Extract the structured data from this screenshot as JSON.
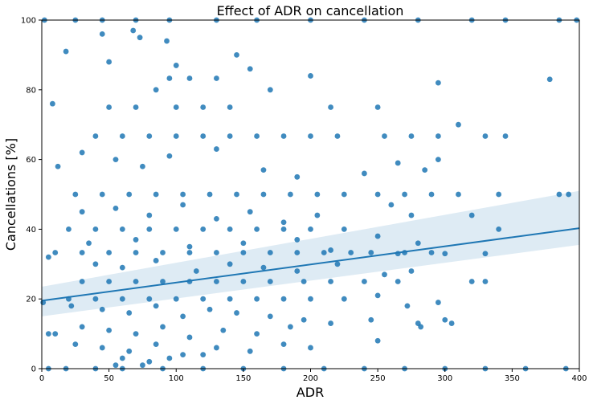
{
  "chart_data": {
    "type": "scatter",
    "title": "Effect of ADR on cancellation",
    "xlabel": "ADR",
    "ylabel": "Cancellations [%]",
    "xlim": [
      0,
      400
    ],
    "ylim": [
      0,
      100
    ],
    "xticks": [
      "0",
      "50",
      "100",
      "150",
      "200",
      "250",
      "300",
      "350",
      "400"
    ],
    "yticks": [
      "0",
      "20",
      "40",
      "60",
      "80",
      "100"
    ],
    "grid": false,
    "legend": "none",
    "point_color": "#1f77b4",
    "regression": {
      "x": [
        0,
        400
      ],
      "y": [
        19.5,
        40.3
      ],
      "ci_low": [
        15.0,
        35.5
      ],
      "ci_high": [
        23.5,
        51.0
      ],
      "color": "#1f77b4"
    },
    "series": [
      {
        "points": [
          [
            5,
            0
          ],
          [
            18,
            0
          ],
          [
            40,
            0
          ],
          [
            60,
            0
          ],
          [
            90,
            0
          ],
          [
            120,
            0
          ],
          [
            150,
            0
          ],
          [
            180,
            0
          ],
          [
            210,
            0
          ],
          [
            240,
            0
          ],
          [
            270,
            0
          ],
          [
            300,
            0
          ],
          [
            330,
            0
          ],
          [
            360,
            0
          ],
          [
            390,
            0
          ],
          [
            2,
            100
          ],
          [
            25,
            100
          ],
          [
            45,
            100
          ],
          [
            70,
            100
          ],
          [
            95,
            100
          ],
          [
            130,
            100
          ],
          [
            160,
            100
          ],
          [
            200,
            100
          ],
          [
            240,
            100
          ],
          [
            280,
            100
          ],
          [
            320,
            100
          ],
          [
            345,
            100
          ],
          [
            385,
            100
          ],
          [
            398,
            100
          ],
          [
            45,
            96
          ],
          [
            68,
            97
          ],
          [
            73,
            95
          ],
          [
            93,
            94
          ],
          [
            18,
            91
          ],
          [
            8,
            76
          ],
          [
            145,
            90
          ],
          [
            50,
            88
          ],
          [
            100,
            87
          ],
          [
            155,
            86
          ],
          [
            200,
            84
          ],
          [
            295,
            82
          ],
          [
            378,
            83
          ],
          [
            310,
            70
          ],
          [
            95,
            83.3
          ],
          [
            110,
            83.3
          ],
          [
            130,
            83.3
          ],
          [
            170,
            80
          ],
          [
            120,
            75
          ],
          [
            140,
            75
          ],
          [
            70,
            75
          ],
          [
            50,
            75
          ],
          [
            215,
            75
          ],
          [
            250,
            75
          ],
          [
            100,
            75
          ],
          [
            85,
            80
          ],
          [
            40,
            66.7
          ],
          [
            60,
            66.7
          ],
          [
            80,
            66.7
          ],
          [
            100,
            66.7
          ],
          [
            120,
            66.7
          ],
          [
            140,
            66.7
          ],
          [
            160,
            66.7
          ],
          [
            180,
            66.7
          ],
          [
            200,
            66.7
          ],
          [
            220,
            66.7
          ],
          [
            255,
            66.7
          ],
          [
            275,
            66.7
          ],
          [
            295,
            66.7
          ],
          [
            330,
            66.7
          ],
          [
            345,
            66.7
          ],
          [
            30,
            62
          ],
          [
            55,
            60
          ],
          [
            75,
            58
          ],
          [
            12,
            58
          ],
          [
            95,
            61
          ],
          [
            130,
            63
          ],
          [
            165,
            57
          ],
          [
            190,
            55
          ],
          [
            240,
            56
          ],
          [
            265,
            59
          ],
          [
            295,
            60
          ],
          [
            285,
            57
          ],
          [
            25,
            50
          ],
          [
            45,
            50
          ],
          [
            65,
            50
          ],
          [
            85,
            50
          ],
          [
            105,
            50
          ],
          [
            125,
            50
          ],
          [
            145,
            50
          ],
          [
            165,
            50
          ],
          [
            185,
            50
          ],
          [
            205,
            50
          ],
          [
            225,
            50
          ],
          [
            250,
            50
          ],
          [
            270,
            50
          ],
          [
            290,
            50
          ],
          [
            310,
            50
          ],
          [
            340,
            50
          ],
          [
            385,
            50
          ],
          [
            392,
            50
          ],
          [
            30,
            45
          ],
          [
            55,
            46
          ],
          [
            80,
            44
          ],
          [
            105,
            47
          ],
          [
            130,
            43
          ],
          [
            155,
            45
          ],
          [
            180,
            42
          ],
          [
            205,
            44
          ],
          [
            260,
            47
          ],
          [
            275,
            44
          ],
          [
            320,
            44
          ],
          [
            20,
            40
          ],
          [
            40,
            40
          ],
          [
            60,
            40
          ],
          [
            80,
            40
          ],
          [
            100,
            40
          ],
          [
            120,
            40
          ],
          [
            140,
            40
          ],
          [
            160,
            40
          ],
          [
            180,
            40
          ],
          [
            200,
            40
          ],
          [
            225,
            40
          ],
          [
            250,
            38
          ],
          [
            280,
            36
          ],
          [
            340,
            40
          ],
          [
            35,
            36
          ],
          [
            70,
            37
          ],
          [
            110,
            35
          ],
          [
            150,
            36
          ],
          [
            190,
            37
          ],
          [
            215,
            34
          ],
          [
            265,
            33
          ],
          [
            300,
            33
          ],
          [
            330,
            33
          ],
          [
            10,
            33.3
          ],
          [
            30,
            33.3
          ],
          [
            50,
            33.3
          ],
          [
            70,
            33.3
          ],
          [
            90,
            33.3
          ],
          [
            110,
            33.3
          ],
          [
            130,
            33.3
          ],
          [
            150,
            33.3
          ],
          [
            170,
            33.3
          ],
          [
            190,
            33.3
          ],
          [
            210,
            33.3
          ],
          [
            230,
            33.3
          ],
          [
            245,
            33.3
          ],
          [
            270,
            33.3
          ],
          [
            290,
            33.3
          ],
          [
            5,
            32
          ],
          [
            40,
            30
          ],
          [
            60,
            29
          ],
          [
            85,
            31
          ],
          [
            115,
            28
          ],
          [
            140,
            30
          ],
          [
            165,
            29
          ],
          [
            190,
            28
          ],
          [
            220,
            30
          ],
          [
            255,
            27
          ],
          [
            275,
            28
          ],
          [
            30,
            25
          ],
          [
            50,
            25
          ],
          [
            70,
            25
          ],
          [
            90,
            25
          ],
          [
            110,
            25
          ],
          [
            130,
            25
          ],
          [
            150,
            25
          ],
          [
            170,
            25
          ],
          [
            195,
            25
          ],
          [
            215,
            25
          ],
          [
            240,
            25
          ],
          [
            265,
            25
          ],
          [
            320,
            25
          ],
          [
            330,
            25
          ],
          [
            20,
            20
          ],
          [
            40,
            20
          ],
          [
            60,
            20
          ],
          [
            80,
            20
          ],
          [
            100,
            20
          ],
          [
            120,
            20
          ],
          [
            140,
            20
          ],
          [
            160,
            20
          ],
          [
            180,
            20
          ],
          [
            200,
            20
          ],
          [
            225,
            20
          ],
          [
            250,
            21
          ],
          [
            272,
            18
          ],
          [
            295,
            19
          ],
          [
            1,
            19
          ],
          [
            22,
            18
          ],
          [
            45,
            17
          ],
          [
            65,
            16
          ],
          [
            85,
            18
          ],
          [
            105,
            15
          ],
          [
            125,
            17
          ],
          [
            145,
            16
          ],
          [
            170,
            15
          ],
          [
            195,
            14
          ],
          [
            215,
            13
          ],
          [
            245,
            14
          ],
          [
            280,
            13
          ],
          [
            300,
            14
          ],
          [
            305,
            13
          ],
          [
            30,
            12
          ],
          [
            50,
            11
          ],
          [
            70,
            10
          ],
          [
            90,
            12
          ],
          [
            110,
            9
          ],
          [
            135,
            11
          ],
          [
            160,
            10
          ],
          [
            185,
            12
          ],
          [
            5,
            10
          ],
          [
            10,
            10
          ],
          [
            250,
            8
          ],
          [
            282,
            12
          ],
          [
            25,
            7
          ],
          [
            45,
            6
          ],
          [
            65,
            5
          ],
          [
            85,
            7
          ],
          [
            105,
            4
          ],
          [
            130,
            6
          ],
          [
            155,
            5
          ],
          [
            180,
            7
          ],
          [
            200,
            6
          ],
          [
            60,
            3
          ],
          [
            80,
            2
          ],
          [
            95,
            3
          ],
          [
            120,
            4
          ],
          [
            55,
            1
          ],
          [
            75,
            1
          ]
        ]
      }
    ]
  }
}
